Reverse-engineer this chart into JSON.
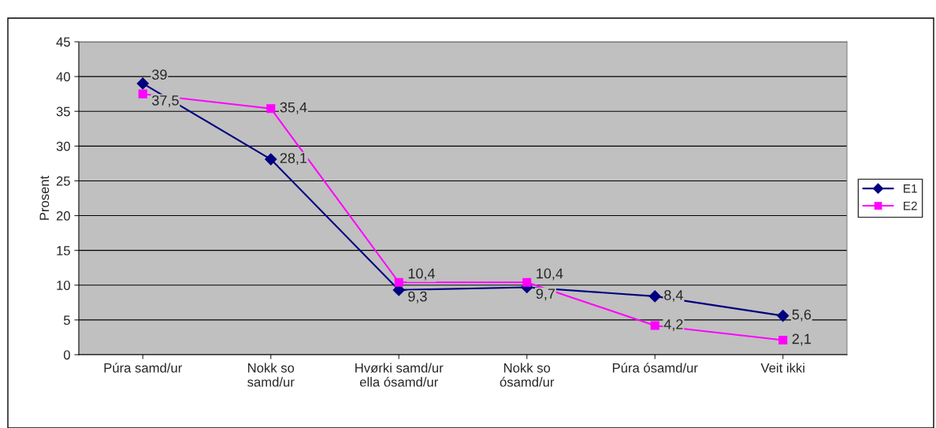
{
  "chart_data": {
    "type": "line",
    "ylabel": "Prosent",
    "categories": [
      "Púra samd/ur",
      "Nokk so\nsamd/ur",
      "Hvørki samd/ur\nella ósamd/ur",
      "Nokk so\nósamd/ur",
      "Púra ósamd/ur",
      "Veit ikki"
    ],
    "series": [
      {
        "name": "E1",
        "color": "#000080",
        "marker": "diamond",
        "values": [
          39,
          28.1,
          9.3,
          9.7,
          8.4,
          5.6
        ],
        "value_labels": [
          "39",
          "28,1",
          "9,3",
          "9,7",
          "8,4",
          "5,6"
        ]
      },
      {
        "name": "E2",
        "color": "#ff00ff",
        "marker": "square",
        "values": [
          37.5,
          35.4,
          10.4,
          10.4,
          4.2,
          2.1
        ],
        "value_labels": [
          "37,5",
          "35,4",
          "10,4",
          "10,4",
          "4,2",
          "2,1"
        ]
      }
    ],
    "ylim": [
      0,
      45
    ],
    "yticks": [
      0,
      5,
      10,
      15,
      20,
      25,
      30,
      35,
      40,
      45
    ],
    "grid": "y",
    "legend": "right"
  }
}
